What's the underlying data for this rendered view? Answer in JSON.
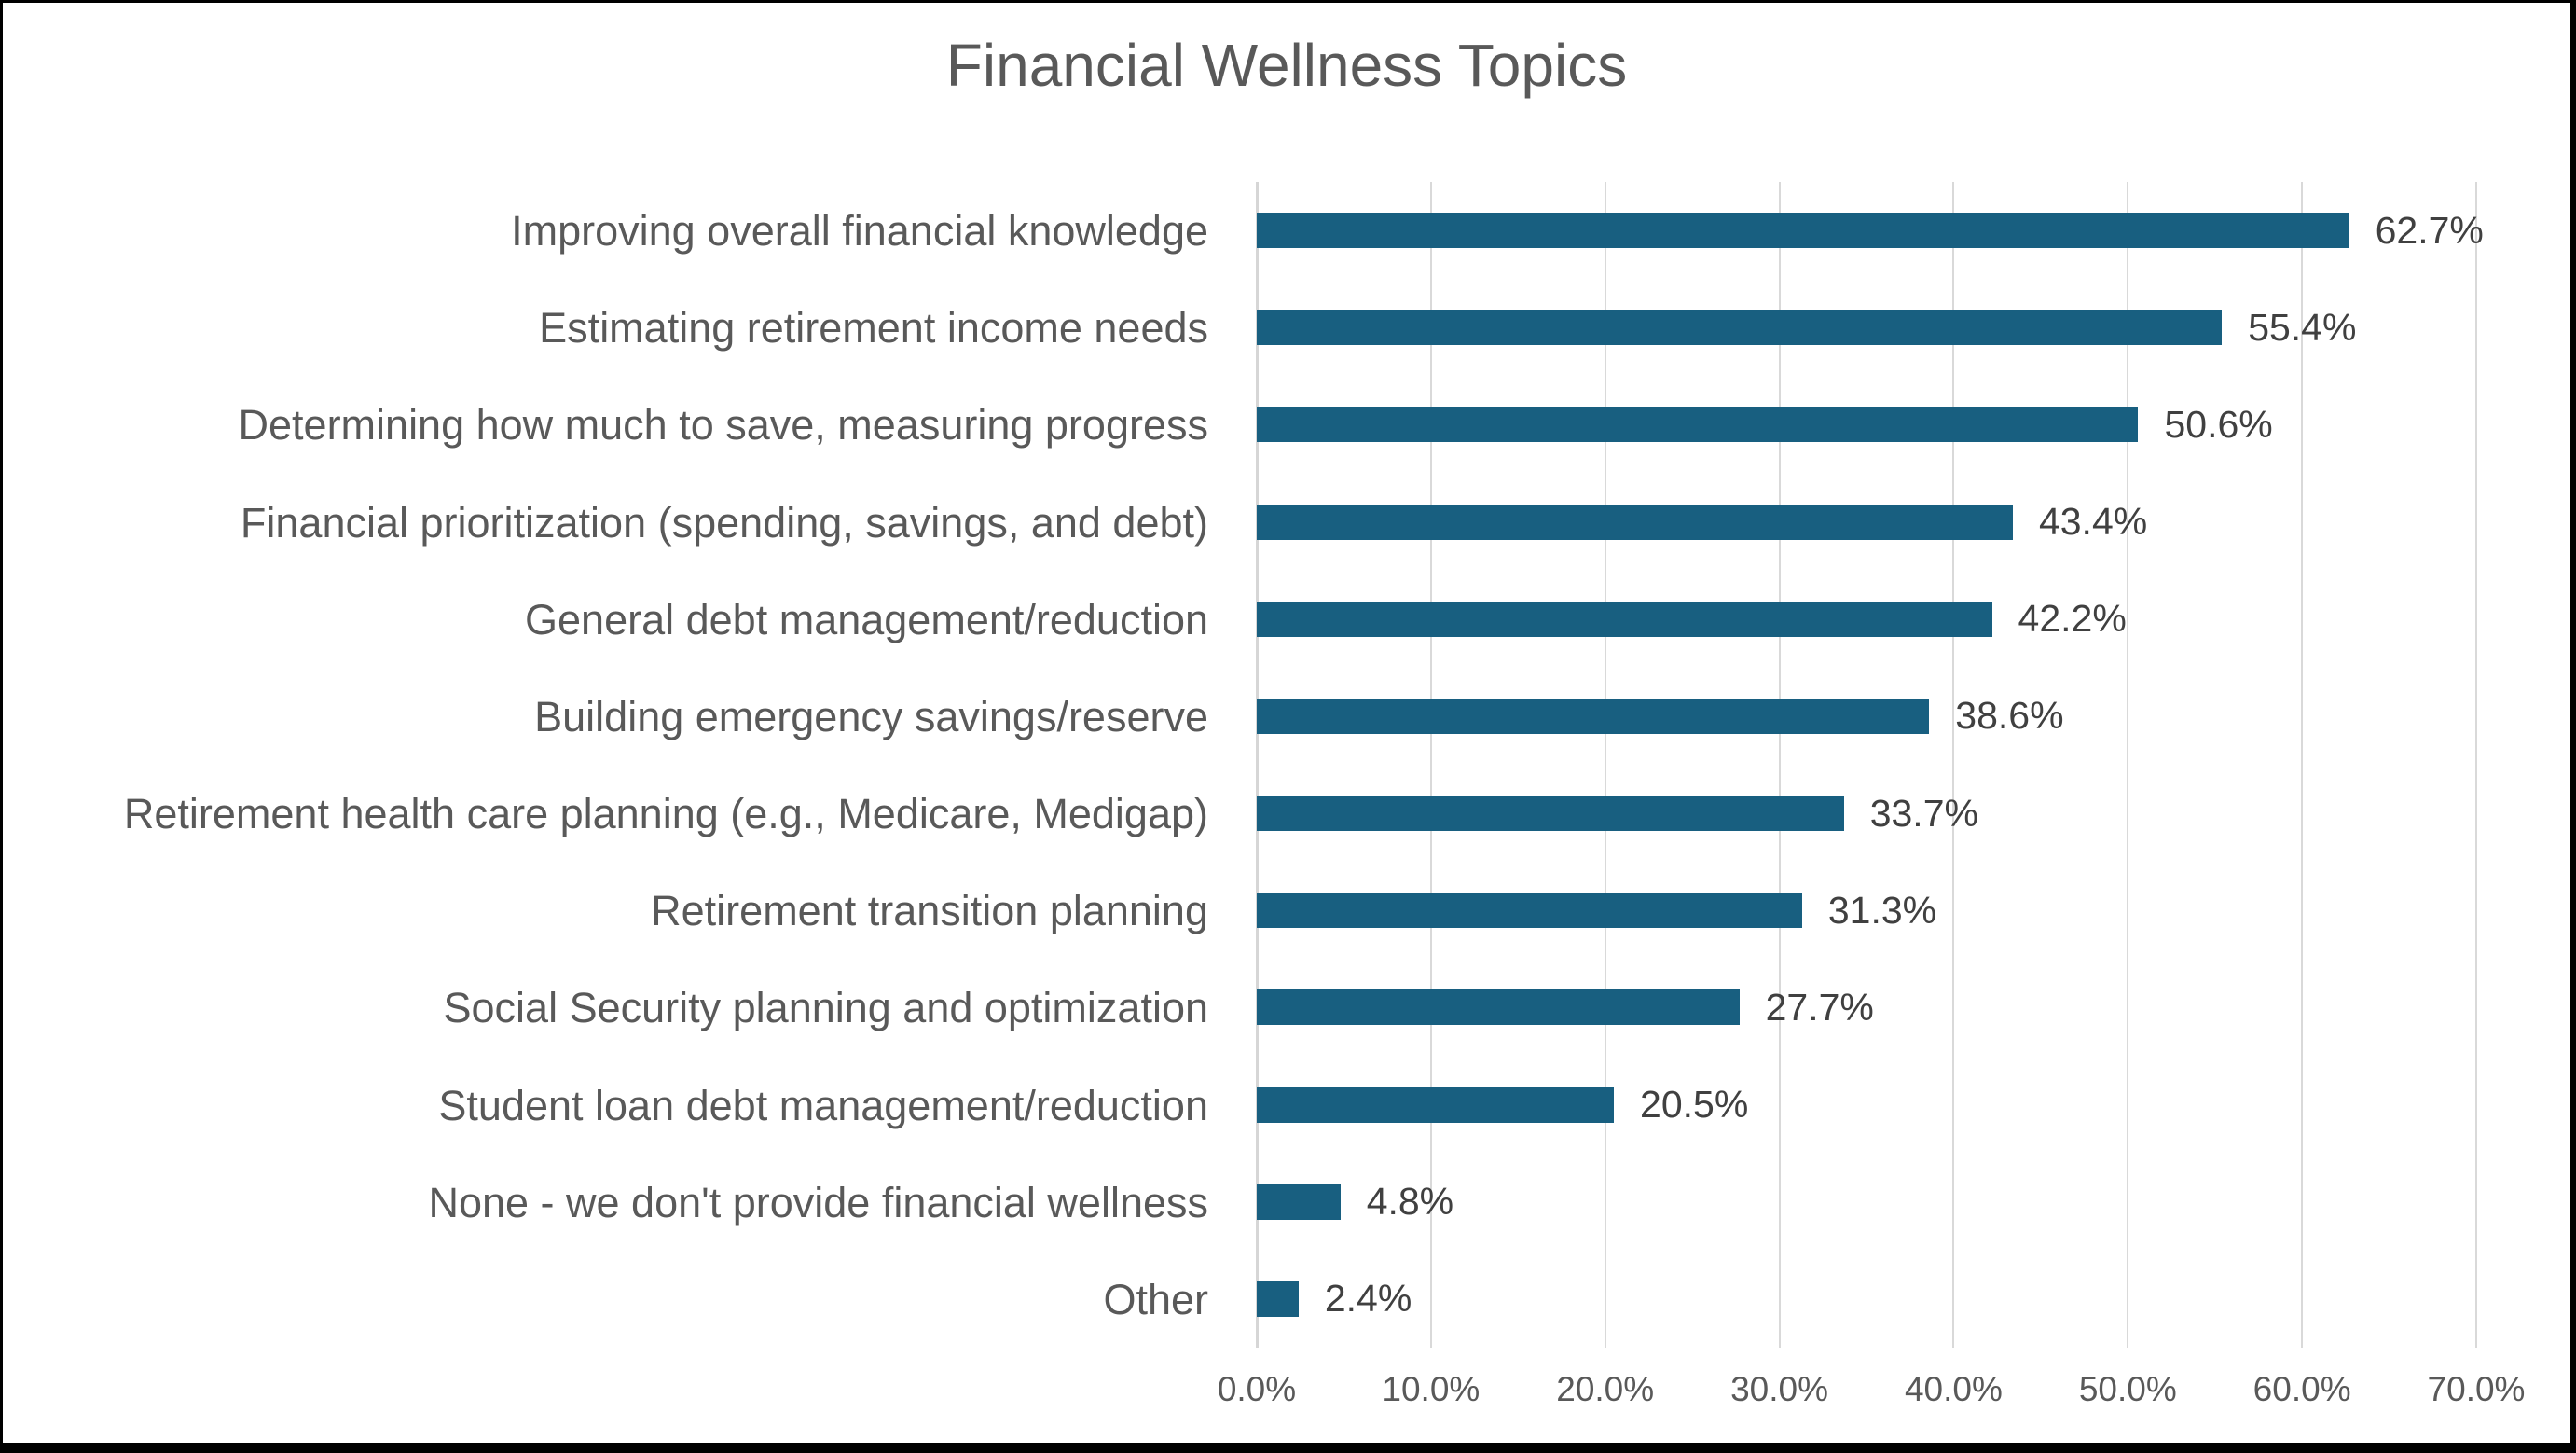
{
  "chart_data": {
    "type": "bar",
    "orientation": "horizontal",
    "title": "Financial Wellness Topics",
    "categories": [
      "Improving overall financial knowledge",
      "Estimating retirement income needs",
      "Determining how much to save, measuring progress",
      "Financial prioritization (spending, savings, and debt)",
      "General debt management/reduction",
      "Building emergency savings/reserve",
      "Retirement health care planning (e.g., Medicare, Medigap)",
      "Retirement transition planning",
      "Social Security planning and optimization",
      "Student loan debt management/reduction",
      "None - we don't provide financial wellness",
      "Other"
    ],
    "values": [
      62.7,
      55.4,
      50.6,
      43.4,
      42.2,
      38.6,
      33.7,
      31.3,
      27.7,
      20.5,
      4.8,
      2.4
    ],
    "value_labels": [
      "62.7%",
      "55.4%",
      "50.6%",
      "43.4%",
      "42.2%",
      "38.6%",
      "33.7%",
      "31.3%",
      "27.7%",
      "20.5%",
      "4.8%",
      "2.4%"
    ],
    "x_tick_labels": [
      "0.0%",
      "10.0%",
      "20.0%",
      "30.0%",
      "40.0%",
      "50.0%",
      "60.0%",
      "70.0%"
    ],
    "x_tick_values": [
      0,
      10,
      20,
      30,
      40,
      50,
      60,
      70
    ],
    "xlim": [
      0,
      70
    ],
    "xlabel": "",
    "ylabel": "",
    "grid": true,
    "legend": "none",
    "colors": {
      "bar": "#185F80",
      "title_text": "#595959",
      "category_text": "#595959",
      "value_text": "#404040",
      "tick_text": "#595959",
      "gridline": "#D9D9D9",
      "frame_border": "#000000",
      "background": "#FFFFFF"
    }
  }
}
